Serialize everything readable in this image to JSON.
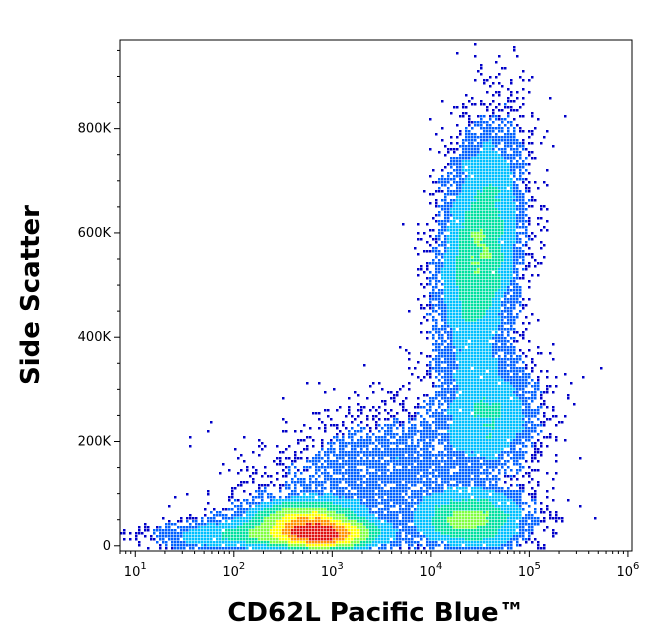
{
  "chart_data": {
    "type": "scatter",
    "style": "density-colored flow cytometry dot plot",
    "title": "",
    "xlabel": "CD62L Pacific Blue™",
    "ylabel": "Side Scatter",
    "x_scale": "log",
    "xlim": [
      7,
      1100000
    ],
    "ylim": [
      -10000,
      970000
    ],
    "x_ticks": [
      {
        "base": "10",
        "exp": "1",
        "value": 10
      },
      {
        "base": "10",
        "exp": "2",
        "value": 100
      },
      {
        "base": "10",
        "exp": "3",
        "value": 1000
      },
      {
        "base": "10",
        "exp": "4",
        "value": 10000
      },
      {
        "base": "10",
        "exp": "5",
        "value": 100000
      },
      {
        "base": "10",
        "exp": "6",
        "value": 1000000
      }
    ],
    "y_ticks": [
      {
        "label": "0",
        "value": 0
      },
      {
        "label": "200K",
        "value": 200000
      },
      {
        "label": "400K",
        "value": 400000
      },
      {
        "label": "600K",
        "value": 600000
      },
      {
        "label": "800K",
        "value": 800000
      }
    ],
    "grid": false,
    "legend": "none",
    "density_colors": [
      "#0000c8",
      "#0060ff",
      "#00c0ff",
      "#00e0a0",
      "#80ff40",
      "#ffff00",
      "#ff9000",
      "#e01010"
    ],
    "populations": [
      {
        "log10_x_center": 4.5,
        "y_center": 560000,
        "log10_x_spread": 0.2,
        "y_spread": 120000,
        "tilt": 0.3,
        "count": 9000
      },
      {
        "log10_x_center": 2.9,
        "y_center": 20000,
        "log10_x_spread": 0.3,
        "y_spread": 15000,
        "tilt": 0.05,
        "count": 6000
      },
      {
        "log10_x_center": 2.7,
        "y_center": 50000,
        "log10_x_spread": 0.3,
        "y_spread": 20000,
        "tilt": 0.05,
        "count": 4000
      },
      {
        "log10_x_center": 4.4,
        "y_center": 50000,
        "log10_x_spread": 0.3,
        "y_spread": 30000,
        "tilt": 0,
        "count": 4000
      },
      {
        "log10_x_center": 4.6,
        "y_center": 250000,
        "log10_x_spread": 0.25,
        "y_spread": 60000,
        "tilt": 0.1,
        "count": 3000
      },
      {
        "log10_x_center": 3.5,
        "y_center": 140000,
        "log10_x_spread": 0.6,
        "y_spread": 70000,
        "tilt": 0.4,
        "count": 3000
      },
      {
        "log10_x_center": 2.0,
        "y_center": 20000,
        "log10_x_spread": 0.4,
        "y_spread": 15000,
        "tilt": 0,
        "count": 1500
      }
    ]
  }
}
